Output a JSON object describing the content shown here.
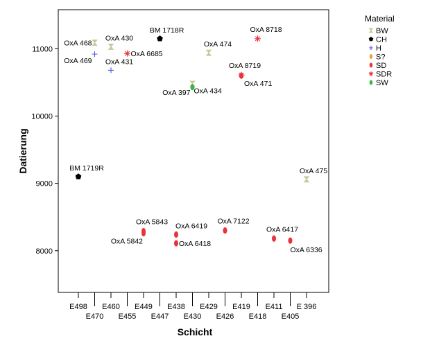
{
  "chart_data": {
    "type": "scatter",
    "xlabel": "Schicht",
    "ylabel": "Datierung",
    "ylim": [
      7380,
      11580
    ],
    "y_ticks": [
      8000,
      9000,
      10000,
      11000
    ],
    "y_tick_labels": [
      "8000",
      "9000",
      "10000",
      "11000"
    ],
    "categories": [
      "E498",
      "E470",
      "E460",
      "E455",
      "E449",
      "E447",
      "E438",
      "E430",
      "E429",
      "E426",
      "E419",
      "E418",
      "E411",
      "E405",
      "E 396"
    ],
    "grid": false,
    "legend": {
      "title": "Material",
      "position": "right",
      "entries": [
        {
          "name": "BW",
          "marker": "hourglass",
          "color": "#c8c89a"
        },
        {
          "name": "CH",
          "marker": "pentagon",
          "color": "#000000"
        },
        {
          "name": "H",
          "marker": "plus",
          "color": "#4a5bd6"
        },
        {
          "name": "S?",
          "marker": "ellipse",
          "color": "#f0a040"
        },
        {
          "name": "SD",
          "marker": "ellipse",
          "color": "#e8323c"
        },
        {
          "name": "SDR",
          "marker": "asterisk",
          "color": "#e8323c"
        },
        {
          "name": "SW",
          "marker": "ellipse",
          "color": "#3cb44b"
        }
      ]
    },
    "points": [
      {
        "label": "OxA 468",
        "x": "E470",
        "y": 11090,
        "material": "BW"
      },
      {
        "label": "OxA 469",
        "x": "E470",
        "y": 10920,
        "material": "H"
      },
      {
        "label": "OxA 430",
        "x": "E460",
        "y": 11030,
        "material": "BW"
      },
      {
        "label": "OxA 431",
        "x": "E460",
        "y": 10680,
        "material": "H"
      },
      {
        "label": "OxA 6685",
        "x": "E455",
        "y": 10930,
        "material": "SDR"
      },
      {
        "label": "BM 1718R",
        "x": "E447",
        "y": 11150,
        "material": "CH"
      },
      {
        "label": "OxA 474",
        "x": "E429",
        "y": 10940,
        "material": "BW"
      },
      {
        "label": "OxA 397",
        "x": "E430",
        "y": 10480,
        "material": "BW"
      },
      {
        "label": "OxA 434",
        "x": "E430",
        "y": 10430,
        "material": "SW"
      },
      {
        "label": "OxA 8719",
        "x": "E419",
        "y": 10610,
        "material": "SDR"
      },
      {
        "label": "OxA 471",
        "x": "E419",
        "y": 10600,
        "material": "SD"
      },
      {
        "label": "OxA 8718",
        "x": "E418",
        "y": 11150,
        "material": "SDR"
      },
      {
        "label": "BM 1719R",
        "x": "E498",
        "y": 9100,
        "material": "CH"
      },
      {
        "label": "OxA 475",
        "x": "E 396",
        "y": 9060,
        "material": "BW"
      },
      {
        "label": "OxA 5843",
        "x": "E449",
        "y": 8290,
        "material": "SD"
      },
      {
        "label": "OxA 5842",
        "x": "E449",
        "y": 8260,
        "material": "SD"
      },
      {
        "label": "OxA 6419",
        "x": "E438",
        "y": 8240,
        "material": "SD"
      },
      {
        "label": "OxA 6418",
        "x": "E438",
        "y": 8110,
        "material": "SD"
      },
      {
        "label": "OxA 7122",
        "x": "E426",
        "y": 8300,
        "material": "SD"
      },
      {
        "label": "OxA 6417",
        "x": "E411",
        "y": 8180,
        "material": "SD"
      },
      {
        "label": "OxA 6336",
        "x": "E405",
        "y": 8150,
        "material": "SD"
      }
    ]
  }
}
